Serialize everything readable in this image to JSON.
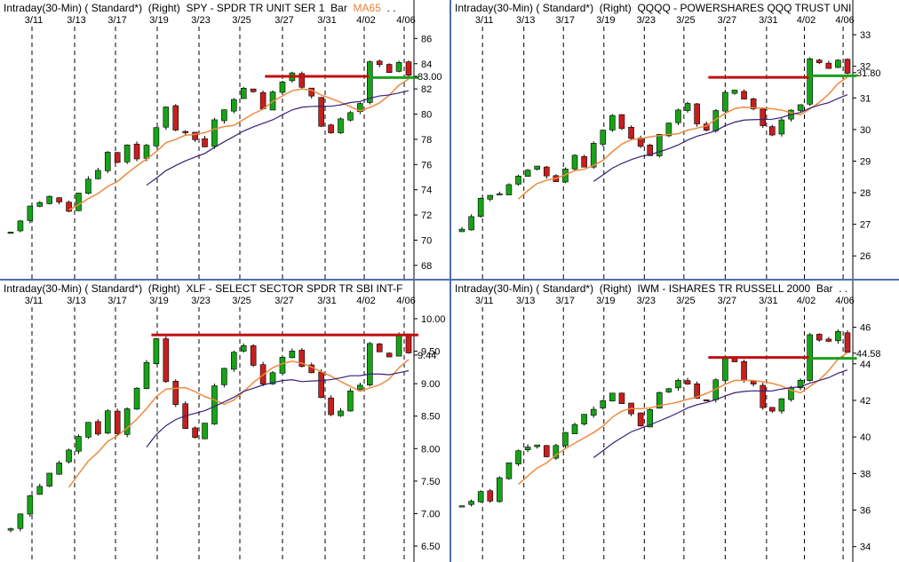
{
  "dates": [
    "3/11",
    "3/13",
    "3/17",
    "3/19",
    "3/23",
    "3/25",
    "3/27",
    "3/31",
    "4/02",
    "4/06"
  ],
  "colors": {
    "up": "#16a416",
    "down": "#c81e1e",
    "ma_fast": "#ef8a3e",
    "ma_slow": "#3a1f7a",
    "resistance": "#c01010",
    "support": "#1aa01a",
    "border": "#4a6fb0"
  },
  "chart_data": [
    {
      "type": "candlestick",
      "header": {
        "interval": "Intraday(30-Min)",
        "scale": "( Standard*)",
        "axis": "(Right)",
        "title": "SPY - SPDR TR UNIT SER 1",
        "style": "Bar",
        "ma": "MA65",
        "ellipsis": ". ."
      },
      "y_ticks": [
        "86",
        "84",
        "82",
        "80",
        "78",
        "76",
        "74",
        "72",
        "70",
        "68"
      ],
      "ylim": [
        67.5,
        86.8
      ],
      "last": "83.00",
      "keypoints": [
        [
          0,
          70.5
        ],
        [
          2,
          72.8
        ],
        [
          4,
          73.4
        ],
        [
          6,
          72.4
        ],
        [
          8,
          75.0
        ],
        [
          9,
          75.5
        ],
        [
          10,
          77.0
        ],
        [
          11,
          76.2
        ],
        [
          12,
          77.7
        ],
        [
          13,
          76.3
        ],
        [
          14,
          77.5
        ],
        [
          16,
          80.5
        ],
        [
          17,
          78.8
        ],
        [
          19,
          78.0
        ],
        [
          20,
          77.5
        ],
        [
          21,
          79.5
        ],
        [
          23,
          81.0
        ],
        [
          24,
          82.2
        ],
        [
          25,
          81.8
        ],
        [
          26,
          80.5
        ],
        [
          28,
          82.7
        ],
        [
          29,
          83.2
        ],
        [
          30,
          82.0
        ],
        [
          31,
          81.5
        ],
        [
          32,
          79.2
        ],
        [
          33,
          78.5
        ],
        [
          34,
          79.5
        ],
        [
          35,
          80.0
        ],
        [
          36,
          80.8
        ],
        [
          37,
          84.2
        ],
        [
          38,
          83.8
        ],
        [
          39,
          83.2
        ],
        [
          40,
          84.1
        ],
        [
          41,
          83.0
        ]
      ],
      "levels": [
        {
          "kind": "resistance",
          "value": 83.0,
          "from": 26.2,
          "to": 36.9
        },
        {
          "kind": "support",
          "value": 82.9,
          "from": 36.9,
          "to": 42.0
        }
      ]
    },
    {
      "type": "candlestick",
      "header": {
        "interval": "Intraday(30-Min)",
        "scale": "( Standard*)",
        "axis": "(Right)",
        "title": "QQQQ - POWERSHARES QQQ TRUST UNI",
        "style": "",
        "ma": "",
        "ellipsis": ""
      },
      "y_ticks": [
        "33",
        "32",
        "31",
        "30",
        "29",
        "28",
        "27",
        "26"
      ],
      "ylim": [
        25.5,
        33.2
      ],
      "last": "31.80",
      "keypoints": [
        [
          0,
          26.8
        ],
        [
          2,
          27.8
        ],
        [
          4,
          28.0
        ],
        [
          6,
          28.5
        ],
        [
          8,
          28.8
        ],
        [
          9,
          28.5
        ],
        [
          10,
          28.3
        ],
        [
          11,
          28.8
        ],
        [
          12,
          29.2
        ],
        [
          13,
          28.8
        ],
        [
          14,
          29.6
        ],
        [
          16,
          30.4
        ],
        [
          17,
          30.0
        ],
        [
          19,
          29.5
        ],
        [
          20,
          29.2
        ],
        [
          21,
          29.8
        ],
        [
          23,
          30.6
        ],
        [
          24,
          30.8
        ],
        [
          25,
          30.2
        ],
        [
          26,
          30.0
        ],
        [
          28,
          31.2
        ],
        [
          29,
          31.3
        ],
        [
          30,
          30.9
        ],
        [
          31,
          30.7
        ],
        [
          32,
          30.1
        ],
        [
          33,
          29.8
        ],
        [
          34,
          30.3
        ],
        [
          35,
          30.6
        ],
        [
          36,
          30.8
        ],
        [
          37,
          32.3
        ],
        [
          38,
          32.1
        ],
        [
          39,
          31.9
        ],
        [
          40,
          32.2
        ],
        [
          41,
          31.8
        ]
      ],
      "levels": [
        {
          "kind": "resistance",
          "value": 31.65,
          "from": 26.2,
          "to": 36.9
        },
        {
          "kind": "support",
          "value": 31.7,
          "from": 36.9,
          "to": 42.0
        }
      ]
    },
    {
      "type": "candlestick",
      "header": {
        "interval": "Intraday(30-Min)",
        "scale": "( Standard*)",
        "axis": "(Right)",
        "title": "XLF - SELECT SECTOR SPDR TR SBI INT-F",
        "style": "",
        "ma": "",
        "ellipsis": ""
      },
      "y_ticks": [
        "10.00",
        "9.50",
        "9.44",
        "9.00",
        "8.50",
        "8.00",
        "7.50",
        "7.00",
        "6.50"
      ],
      "ylim": [
        6.35,
        10.15
      ],
      "last": "9.44",
      "keypoints": [
        [
          0,
          6.75
        ],
        [
          2,
          7.3
        ],
        [
          4,
          7.6
        ],
        [
          6,
          8.0
        ],
        [
          8,
          8.4
        ],
        [
          9,
          8.2
        ],
        [
          10,
          8.6
        ],
        [
          11,
          8.2
        ],
        [
          12,
          8.6
        ],
        [
          14,
          9.3
        ],
        [
          15,
          9.7
        ],
        [
          16,
          9.0
        ],
        [
          17,
          8.7
        ],
        [
          18,
          8.3
        ],
        [
          19,
          8.2
        ],
        [
          20,
          8.4
        ],
        [
          21,
          9.0
        ],
        [
          23,
          9.5
        ],
        [
          24,
          9.6
        ],
        [
          25,
          9.3
        ],
        [
          26,
          9.0
        ],
        [
          28,
          9.4
        ],
        [
          29,
          9.5
        ],
        [
          30,
          9.3
        ],
        [
          31,
          9.2
        ],
        [
          32,
          8.8
        ],
        [
          33,
          8.5
        ],
        [
          34,
          8.6
        ],
        [
          35,
          8.9
        ],
        [
          36,
          9.0
        ],
        [
          37,
          9.6
        ],
        [
          38,
          9.5
        ],
        [
          39,
          9.4
        ],
        [
          40,
          9.75
        ],
        [
          41,
          9.44
        ]
      ],
      "levels": [
        {
          "kind": "resistance",
          "value": 9.75,
          "from": 14.5,
          "to": 42.0
        }
      ]
    },
    {
      "type": "candlestick",
      "header": {
        "interval": "Intraday(30-Min)",
        "scale": "( Standard*)",
        "axis": "(Right)",
        "title": "IWM - ISHARES TR RUSSELL 2000",
        "style": "Bar",
        "ma": "",
        "ellipsis": ". ."
      },
      "y_ticks": [
        "46",
        "44.58",
        "44",
        "42",
        "40",
        "38",
        "36",
        "34"
      ],
      "ylim": [
        33.5,
        47.0
      ],
      "last": "44.58",
      "keypoints": [
        [
          0,
          36.2
        ],
        [
          2,
          37.0
        ],
        [
          3,
          36.5
        ],
        [
          4,
          37.8
        ],
        [
          6,
          39.2
        ],
        [
          8,
          39.6
        ],
        [
          9,
          38.8
        ],
        [
          10,
          39.5
        ],
        [
          11,
          40.2
        ],
        [
          12,
          40.8
        ],
        [
          14,
          41.5
        ],
        [
          16,
          42.5
        ],
        [
          17,
          41.8
        ],
        [
          19,
          40.5
        ],
        [
          20,
          41.5
        ],
        [
          21,
          42.5
        ],
        [
          23,
          43.0
        ],
        [
          24,
          42.8
        ],
        [
          25,
          42.2
        ],
        [
          26,
          42.0
        ],
        [
          28,
          44.2
        ],
        [
          29,
          44.0
        ],
        [
          30,
          43.2
        ],
        [
          31,
          42.8
        ],
        [
          32,
          41.5
        ],
        [
          33,
          41.3
        ],
        [
          34,
          42.0
        ],
        [
          35,
          42.8
        ],
        [
          36,
          43.0
        ],
        [
          37,
          45.6
        ],
        [
          38,
          45.4
        ],
        [
          39,
          45.2
        ],
        [
          40,
          45.8
        ],
        [
          41,
          44.6
        ]
      ],
      "levels": [
        {
          "kind": "resistance",
          "value": 44.35,
          "from": 26.2,
          "to": 36.9
        },
        {
          "kind": "support",
          "value": 44.3,
          "from": 36.9,
          "to": 42.0
        }
      ]
    }
  ]
}
